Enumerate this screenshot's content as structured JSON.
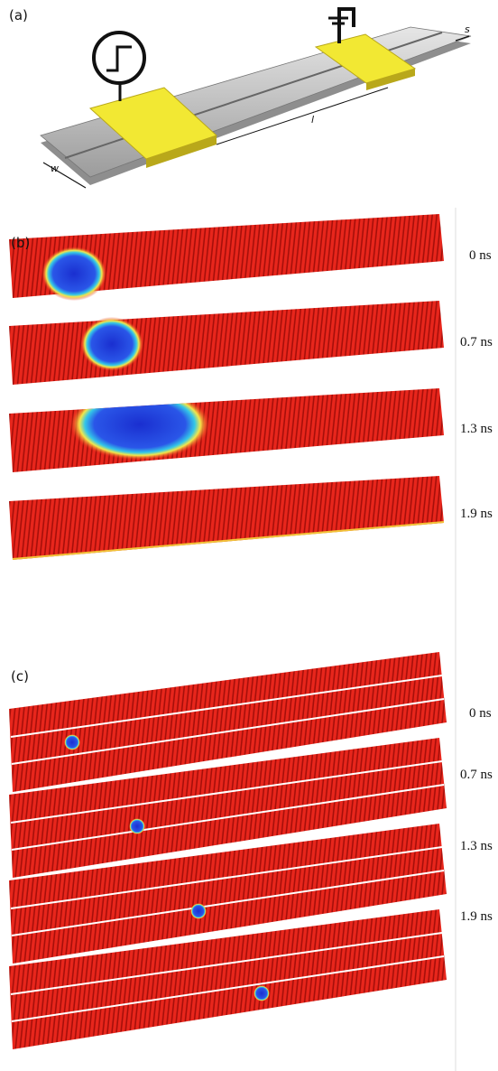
{
  "panel_a": {
    "label": "(a)",
    "dims": {
      "s": "s",
      "l": "l",
      "w": "w"
    }
  },
  "panel_b": {
    "label": "(b)",
    "times": [
      "0 ns",
      "0.7 ns",
      "1.3 ns",
      "1.9 ns"
    ]
  },
  "panel_c": {
    "label": "(c)",
    "times": [
      "0 ns",
      "0.7 ns",
      "1.3 ns",
      "1.9 ns"
    ]
  }
}
